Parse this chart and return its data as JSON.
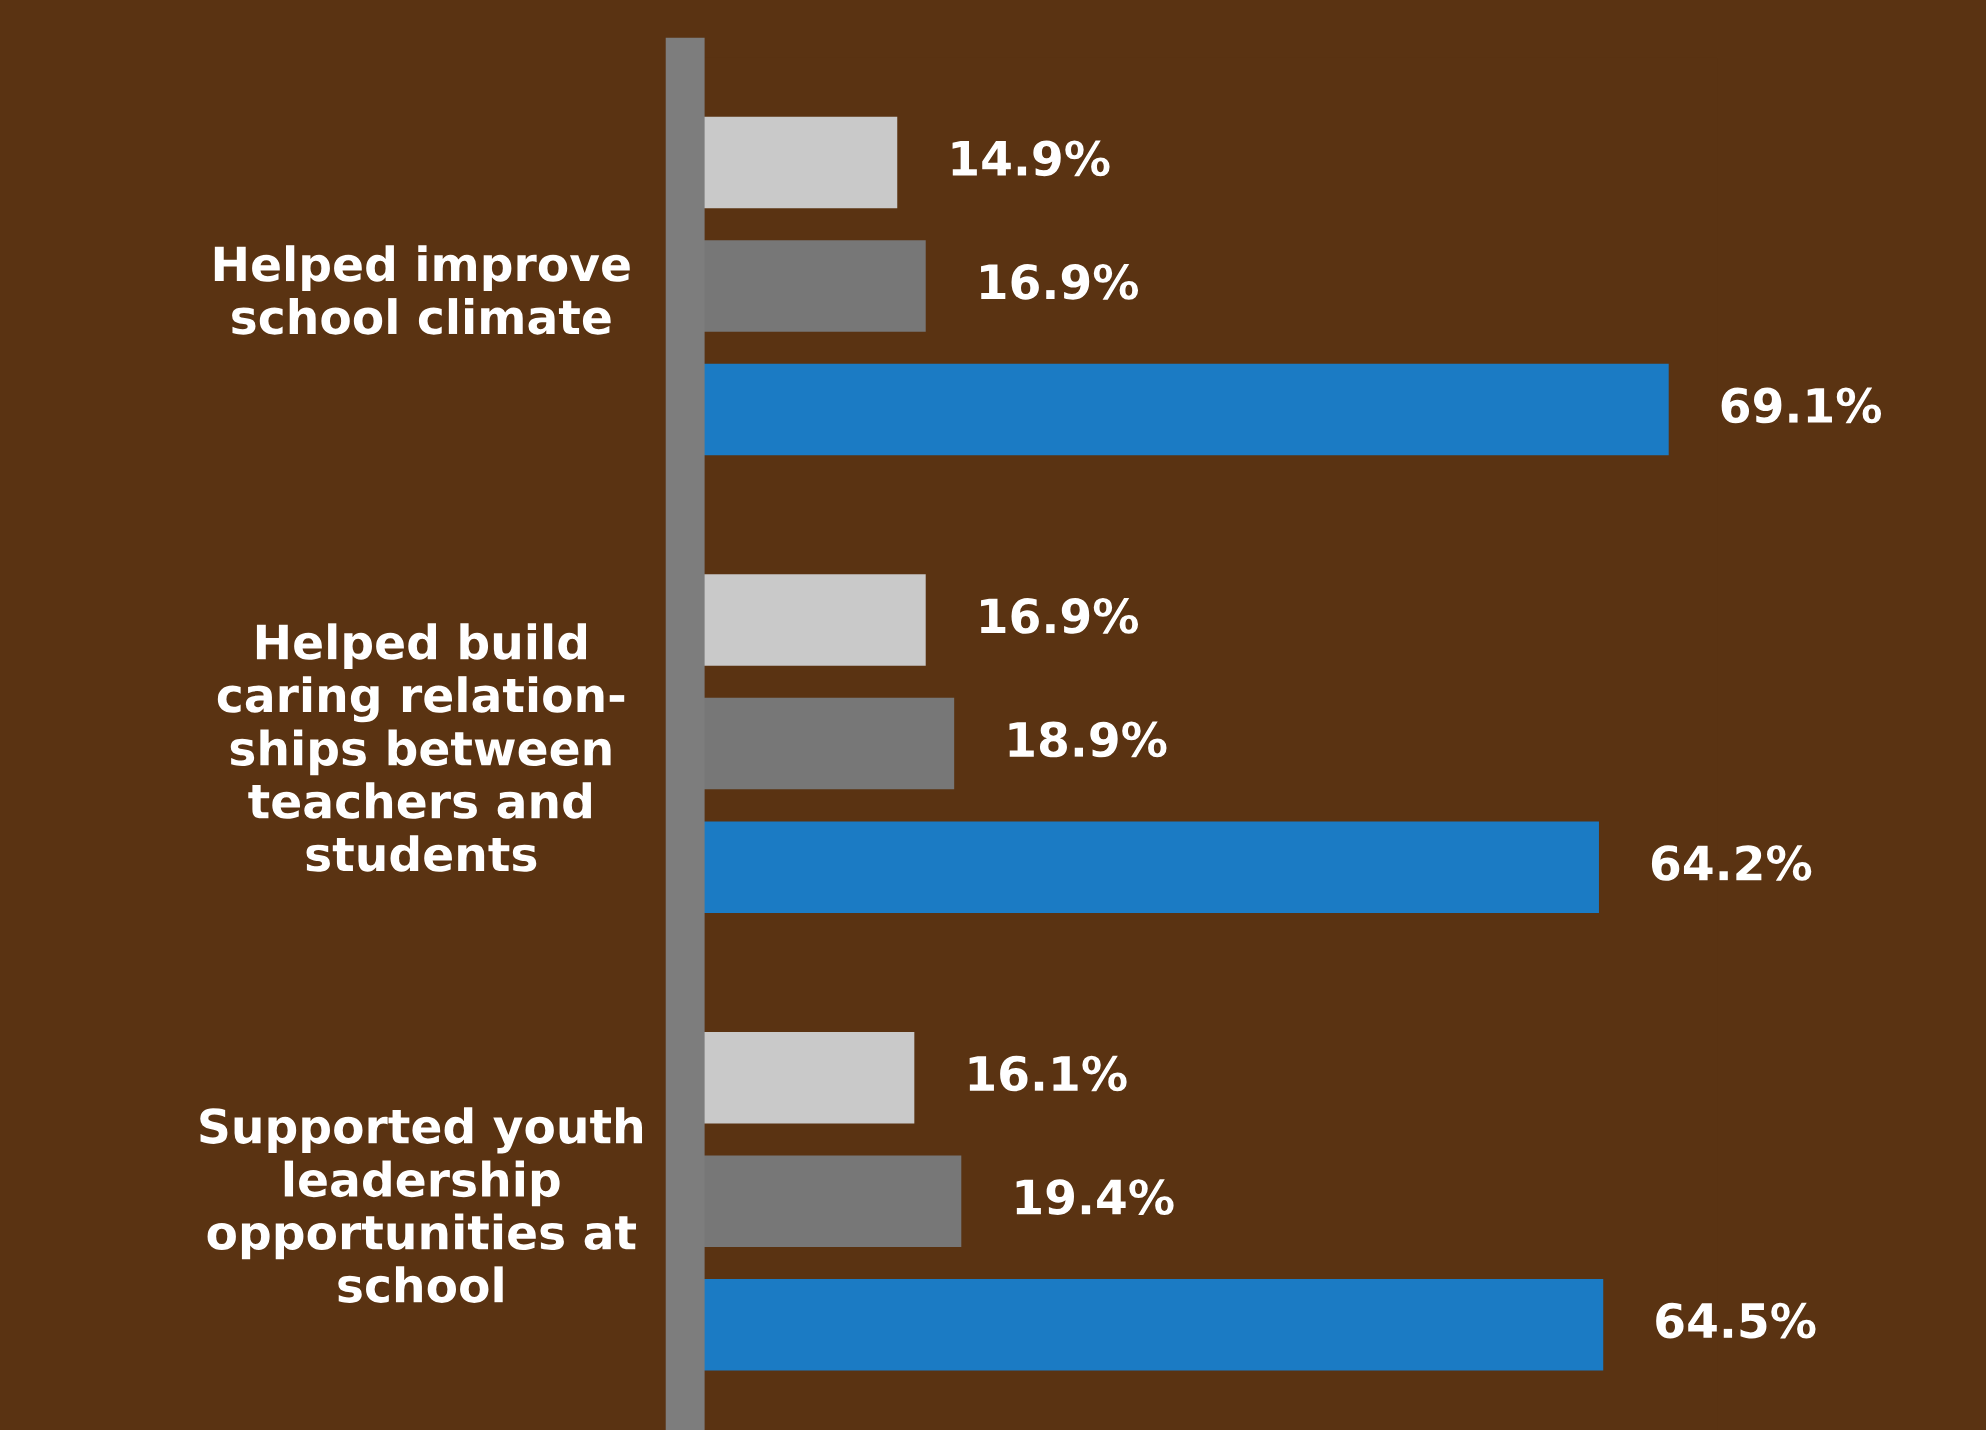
{
  "chart_data": {
    "type": "bar",
    "orientation": "horizontal",
    "categories": [
      "Helped improve\nschool climate",
      "Helped build\ncaring relation-\nships between\nteachers and\nstudents",
      "Supported youth\nleadership\nopportunities at\nschool"
    ],
    "series": [
      {
        "color": "#c9c9c9",
        "values": [
          14.9,
          16.9,
          16.1
        ],
        "value_labels": [
          "14.9%",
          "16.9%",
          "16.1%"
        ]
      },
      {
        "color": "#777777",
        "values": [
          16.9,
          18.9,
          19.4
        ],
        "value_labels": [
          "16.9%",
          "18.9%",
          "19.4%"
        ]
      },
      {
        "color": "#1b7bc4",
        "values": [
          69.1,
          64.2,
          64.5
        ],
        "value_labels": [
          "69.1%",
          "64.2%",
          "64.5%"
        ]
      }
    ],
    "tick_labels": "y",
    "grid": false,
    "legend": false
  }
}
